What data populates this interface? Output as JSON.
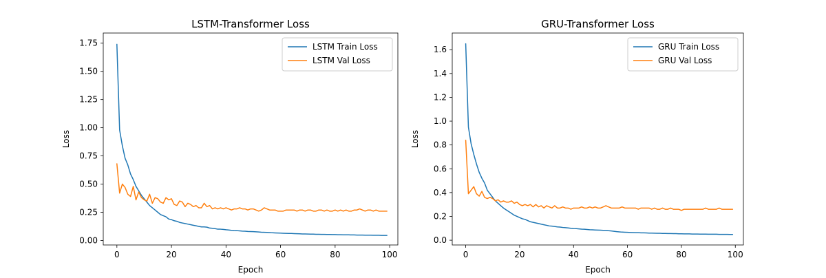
{
  "colors": {
    "train": "#1f77b4",
    "val": "#ff7f0e",
    "frame": "#000000",
    "legend_border": "#cccccc"
  },
  "chart_data": [
    {
      "type": "line",
      "title": "LSTM-Transformer Loss",
      "xlabel": "Epoch",
      "ylabel": "Loss",
      "xlim": [
        -5,
        103
      ],
      "ylim": [
        -0.04,
        1.84
      ],
      "xticks": [
        0,
        20,
        40,
        60,
        80,
        100
      ],
      "xtick_labels": [
        "0",
        "20",
        "40",
        "60",
        "80",
        "100"
      ],
      "yticks": [
        0.0,
        0.25,
        0.5,
        0.75,
        1.0,
        1.25,
        1.5,
        1.75
      ],
      "ytick_labels": [
        "0.00",
        "0.25",
        "0.50",
        "0.75",
        "1.00",
        "1.25",
        "1.50",
        "1.75"
      ],
      "grid": false,
      "legend": "top-right",
      "x": [
        0,
        1,
        2,
        3,
        4,
        5,
        6,
        7,
        8,
        9,
        10,
        11,
        12,
        13,
        14,
        15,
        16,
        17,
        18,
        19,
        20,
        21,
        22,
        23,
        24,
        25,
        26,
        27,
        28,
        29,
        30,
        31,
        32,
        33,
        34,
        35,
        36,
        37,
        38,
        39,
        40,
        41,
        42,
        43,
        44,
        45,
        46,
        47,
        48,
        49,
        50,
        51,
        52,
        53,
        54,
        55,
        56,
        57,
        58,
        59,
        60,
        61,
        62,
        63,
        64,
        65,
        66,
        67,
        68,
        69,
        70,
        71,
        72,
        73,
        74,
        75,
        76,
        77,
        78,
        79,
        80,
        81,
        82,
        83,
        84,
        85,
        86,
        87,
        88,
        89,
        90,
        91,
        92,
        93,
        94,
        95,
        96,
        97,
        98,
        99
      ],
      "series": [
        {
          "name": "LSTM Train Loss",
          "color": "#1f77b4",
          "values": [
            1.74,
            0.98,
            0.84,
            0.73,
            0.67,
            0.59,
            0.54,
            0.48,
            0.44,
            0.4,
            0.37,
            0.34,
            0.31,
            0.29,
            0.27,
            0.25,
            0.23,
            0.22,
            0.21,
            0.19,
            0.185,
            0.175,
            0.17,
            0.16,
            0.155,
            0.15,
            0.145,
            0.14,
            0.135,
            0.13,
            0.125,
            0.12,
            0.12,
            0.118,
            0.11,
            0.108,
            0.105,
            0.1,
            0.1,
            0.098,
            0.095,
            0.093,
            0.09,
            0.088,
            0.087,
            0.085,
            0.083,
            0.082,
            0.08,
            0.079,
            0.078,
            0.077,
            0.075,
            0.073,
            0.072,
            0.071,
            0.07,
            0.068,
            0.067,
            0.066,
            0.065,
            0.064,
            0.063,
            0.062,
            0.062,
            0.061,
            0.06,
            0.059,
            0.058,
            0.058,
            0.057,
            0.056,
            0.056,
            0.055,
            0.055,
            0.054,
            0.054,
            0.053,
            0.053,
            0.052,
            0.052,
            0.051,
            0.051,
            0.05,
            0.05,
            0.05,
            0.049,
            0.049,
            0.048,
            0.048,
            0.048,
            0.047,
            0.047,
            0.047,
            0.046,
            0.046,
            0.046,
            0.045,
            0.045,
            0.045
          ]
        },
        {
          "name": "LSTM Val Loss",
          "color": "#ff7f0e",
          "values": [
            0.68,
            0.42,
            0.5,
            0.47,
            0.41,
            0.39,
            0.48,
            0.36,
            0.43,
            0.38,
            0.36,
            0.35,
            0.41,
            0.33,
            0.38,
            0.37,
            0.34,
            0.33,
            0.38,
            0.36,
            0.37,
            0.32,
            0.31,
            0.35,
            0.34,
            0.3,
            0.33,
            0.32,
            0.3,
            0.31,
            0.29,
            0.29,
            0.33,
            0.3,
            0.31,
            0.28,
            0.29,
            0.28,
            0.29,
            0.28,
            0.29,
            0.28,
            0.27,
            0.28,
            0.28,
            0.29,
            0.28,
            0.28,
            0.27,
            0.28,
            0.28,
            0.27,
            0.26,
            0.27,
            0.29,
            0.28,
            0.27,
            0.27,
            0.27,
            0.26,
            0.26,
            0.26,
            0.27,
            0.27,
            0.27,
            0.27,
            0.26,
            0.27,
            0.27,
            0.26,
            0.27,
            0.27,
            0.26,
            0.26,
            0.27,
            0.27,
            0.26,
            0.27,
            0.26,
            0.26,
            0.27,
            0.26,
            0.27,
            0.26,
            0.27,
            0.26,
            0.26,
            0.27,
            0.27,
            0.28,
            0.27,
            0.26,
            0.27,
            0.27,
            0.26,
            0.27,
            0.26,
            0.26,
            0.26,
            0.26
          ]
        }
      ]
    },
    {
      "type": "line",
      "title": "GRU-Transformer Loss",
      "xlabel": "Epoch",
      "ylabel": "Loss",
      "xlim": [
        -5,
        103
      ],
      "ylim": [
        -0.04,
        1.74
      ],
      "xticks": [
        0,
        20,
        40,
        60,
        80,
        100
      ],
      "xtick_labels": [
        "0",
        "20",
        "40",
        "60",
        "80",
        "100"
      ],
      "yticks": [
        0.0,
        0.2,
        0.4,
        0.6,
        0.8,
        1.0,
        1.2,
        1.4,
        1.6
      ],
      "ytick_labels": [
        "0.0",
        "0.2",
        "0.4",
        "0.6",
        "0.8",
        "1.0",
        "1.2",
        "1.4",
        "1.6"
      ],
      "grid": false,
      "legend": "top-right",
      "x": [
        0,
        1,
        2,
        3,
        4,
        5,
        6,
        7,
        8,
        9,
        10,
        11,
        12,
        13,
        14,
        15,
        16,
        17,
        18,
        19,
        20,
        21,
        22,
        23,
        24,
        25,
        26,
        27,
        28,
        29,
        30,
        31,
        32,
        33,
        34,
        35,
        36,
        37,
        38,
        39,
        40,
        41,
        42,
        43,
        44,
        45,
        46,
        47,
        48,
        49,
        50,
        51,
        52,
        53,
        54,
        55,
        56,
        57,
        58,
        59,
        60,
        61,
        62,
        63,
        64,
        65,
        66,
        67,
        68,
        69,
        70,
        71,
        72,
        73,
        74,
        75,
        76,
        77,
        78,
        79,
        80,
        81,
        82,
        83,
        84,
        85,
        86,
        87,
        88,
        89,
        90,
        91,
        92,
        93,
        94,
        95,
        96,
        97,
        98,
        99
      ],
      "series": [
        {
          "name": "GRU Train Loss",
          "color": "#1f77b4",
          "values": [
            1.65,
            0.95,
            0.81,
            0.72,
            0.64,
            0.57,
            0.52,
            0.48,
            0.42,
            0.39,
            0.36,
            0.33,
            0.31,
            0.29,
            0.27,
            0.255,
            0.24,
            0.225,
            0.21,
            0.2,
            0.19,
            0.18,
            0.175,
            0.165,
            0.155,
            0.15,
            0.145,
            0.14,
            0.135,
            0.13,
            0.125,
            0.12,
            0.118,
            0.115,
            0.112,
            0.11,
            0.107,
            0.105,
            0.103,
            0.1,
            0.098,
            0.097,
            0.095,
            0.093,
            0.092,
            0.09,
            0.088,
            0.087,
            0.086,
            0.085,
            0.084,
            0.083,
            0.083,
            0.08,
            0.078,
            0.075,
            0.072,
            0.07,
            0.068,
            0.067,
            0.066,
            0.065,
            0.064,
            0.063,
            0.063,
            0.062,
            0.062,
            0.061,
            0.06,
            0.06,
            0.059,
            0.058,
            0.058,
            0.057,
            0.057,
            0.056,
            0.056,
            0.055,
            0.055,
            0.054,
            0.054,
            0.053,
            0.053,
            0.053,
            0.052,
            0.052,
            0.052,
            0.051,
            0.051,
            0.051,
            0.05,
            0.05,
            0.05,
            0.05,
            0.049,
            0.049,
            0.049,
            0.049,
            0.048,
            0.048
          ]
        },
        {
          "name": "GRU Val Loss",
          "color": "#ff7f0e",
          "values": [
            0.84,
            0.39,
            0.42,
            0.45,
            0.39,
            0.37,
            0.41,
            0.36,
            0.35,
            0.36,
            0.35,
            0.33,
            0.34,
            0.32,
            0.33,
            0.32,
            0.32,
            0.33,
            0.31,
            0.32,
            0.3,
            0.29,
            0.3,
            0.29,
            0.3,
            0.28,
            0.3,
            0.28,
            0.29,
            0.27,
            0.29,
            0.28,
            0.27,
            0.29,
            0.27,
            0.27,
            0.28,
            0.27,
            0.27,
            0.26,
            0.27,
            0.27,
            0.27,
            0.28,
            0.27,
            0.27,
            0.28,
            0.27,
            0.28,
            0.27,
            0.27,
            0.28,
            0.29,
            0.28,
            0.27,
            0.27,
            0.27,
            0.27,
            0.28,
            0.27,
            0.27,
            0.27,
            0.27,
            0.27,
            0.26,
            0.27,
            0.27,
            0.27,
            0.27,
            0.26,
            0.27,
            0.26,
            0.26,
            0.27,
            0.26,
            0.26,
            0.27,
            0.26,
            0.26,
            0.26,
            0.25,
            0.26,
            0.26,
            0.26,
            0.26,
            0.26,
            0.26,
            0.26,
            0.26,
            0.27,
            0.26,
            0.26,
            0.26,
            0.26,
            0.27,
            0.26,
            0.26,
            0.26,
            0.26,
            0.26
          ]
        }
      ]
    }
  ]
}
